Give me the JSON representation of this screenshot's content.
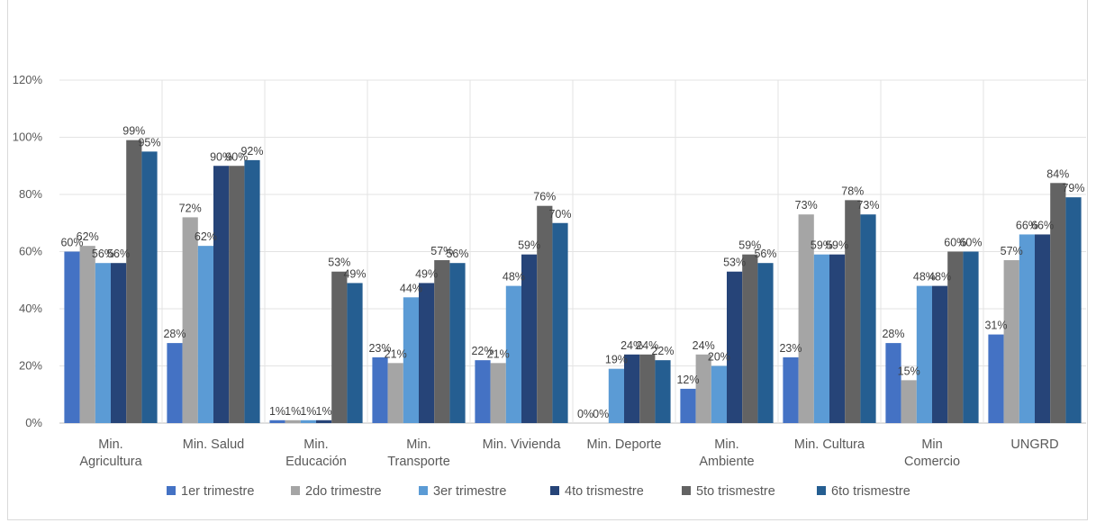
{
  "chart_data": {
    "type": "bar",
    "title": "",
    "xlabel": "",
    "ylabel": "",
    "ylim": [
      0,
      1.2
    ],
    "yticks": [
      0,
      0.2,
      0.4,
      0.6,
      0.8,
      1.0,
      1.2
    ],
    "ytick_labels": [
      "0%",
      "20%",
      "40%",
      "60%",
      "80%",
      "100%",
      "120%"
    ],
    "grid": true,
    "legend_position": "bottom",
    "categories": [
      [
        "Min.",
        "Agricultura"
      ],
      [
        "Min. Salud"
      ],
      [
        "Min.",
        "Educación"
      ],
      [
        "Min.",
        "Transporte"
      ],
      [
        "Min. Vivienda"
      ],
      [
        "Min. Deporte"
      ],
      [
        "Min.",
        "Ambiente"
      ],
      [
        "Min. Cultura"
      ],
      [
        "Min",
        "Comercio"
      ],
      [
        "UNGRD"
      ]
    ],
    "series": [
      {
        "name": "1er trimestre",
        "color": "#4472c4",
        "values": [
          0.6,
          0.28,
          0.01,
          0.23,
          0.22,
          0.0,
          0.12,
          0.23,
          0.28,
          0.31
        ],
        "labels": [
          "60%",
          "28%",
          "1%",
          "23%",
          "22%",
          "0%",
          "12%",
          "23%",
          "28%",
          "31%"
        ]
      },
      {
        "name": "2do trimestre",
        "color": "#a5a5a5",
        "values": [
          0.62,
          0.72,
          0.01,
          0.21,
          0.21,
          0.0,
          0.24,
          0.73,
          0.15,
          0.57
        ],
        "labels": [
          "62%",
          "72%",
          "1%",
          "21%",
          "21%",
          "0%",
          "24%",
          "73%",
          "15%",
          "57%"
        ]
      },
      {
        "name": "3er trimestre",
        "color": "#5b9bd5",
        "values": [
          0.56,
          0.62,
          0.01,
          0.44,
          0.48,
          0.19,
          0.2,
          0.59,
          0.48,
          0.66
        ],
        "labels": [
          "56%",
          "62%",
          "1%",
          "44%",
          "48%",
          "19%",
          "20%",
          "59%",
          "48%",
          "66%"
        ]
      },
      {
        "name": "4to trismestre",
        "color": "#264478",
        "values": [
          0.56,
          0.9,
          0.01,
          0.49,
          0.59,
          0.24,
          0.53,
          0.59,
          0.48,
          0.66
        ],
        "labels": [
          "56%",
          "90%",
          "1%",
          "49%",
          "59%",
          "24%",
          "53%",
          "59%",
          "48%",
          "66%"
        ]
      },
      {
        "name": "5to trismestre",
        "color": "#636363",
        "values": [
          0.99,
          0.9,
          0.53,
          0.57,
          0.76,
          0.24,
          0.59,
          0.78,
          0.6,
          0.84
        ],
        "labels": [
          "99%",
          "90%",
          "53%",
          "57%",
          "76%",
          "24%",
          "59%",
          "78%",
          "60%",
          "84%"
        ]
      },
      {
        "name": "6to trismestre",
        "color": "#255e91",
        "values": [
          0.95,
          0.92,
          0.49,
          0.56,
          0.7,
          0.22,
          0.56,
          0.73,
          0.6,
          0.79
        ],
        "labels": [
          "95%",
          "92%",
          "49%",
          "56%",
          "70%",
          "22%",
          "56%",
          "73%",
          "60%",
          "79%"
        ]
      }
    ]
  }
}
